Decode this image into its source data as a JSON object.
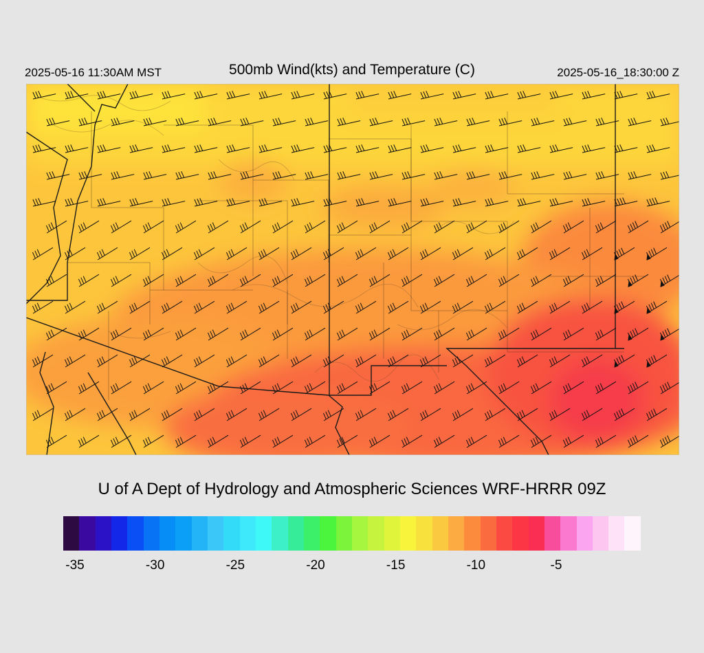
{
  "header": {
    "valid_local": "2025-05-16 11:30AM MST",
    "title": "500mb Wind(kts) and Temperature (C)",
    "valid_utc": "2025-05-16_18:30:00 Z"
  },
  "credit": "U of A Dept of Hydrology and Atmospheric Sciences WRF-HRRR 09Z",
  "colorbar": {
    "colors": [
      "#2e0a42",
      "#3a0aa0",
      "#2c12c6",
      "#1227e8",
      "#0a4ff5",
      "#0873f4",
      "#078df6",
      "#0b9ff7",
      "#22b4f7",
      "#3cc7f9",
      "#33dbf9",
      "#3ee9fb",
      "#3ef8f7",
      "#3ef0c8",
      "#36ec99",
      "#3cf06a",
      "#4cf53d",
      "#7df43c",
      "#a6f53f",
      "#c6f43e",
      "#e0f43b",
      "#f8f43b",
      "#f9e13d",
      "#fac940",
      "#fbab41",
      "#fc8b3e",
      "#fb6b40",
      "#fb4a42",
      "#fc3645",
      "#fa2e52",
      "#f74d9c",
      "#fb7ad0",
      "#fba4f0",
      "#fcc6f0",
      "#fde2f8",
      "#fef4fc"
    ],
    "tick_labels": [
      "-35",
      "-30",
      "-25",
      "-20",
      "-15",
      "-10",
      "-5"
    ]
  },
  "map": {
    "variable": "500mb temperature",
    "units": "C",
    "wind_units": "kts",
    "colors": {
      "cool": "#fed83a",
      "mid": "#fdc03a",
      "warm": "#fb9a3a",
      "hot": "#f85a40",
      "hottest": "#f73e48"
    }
  }
}
